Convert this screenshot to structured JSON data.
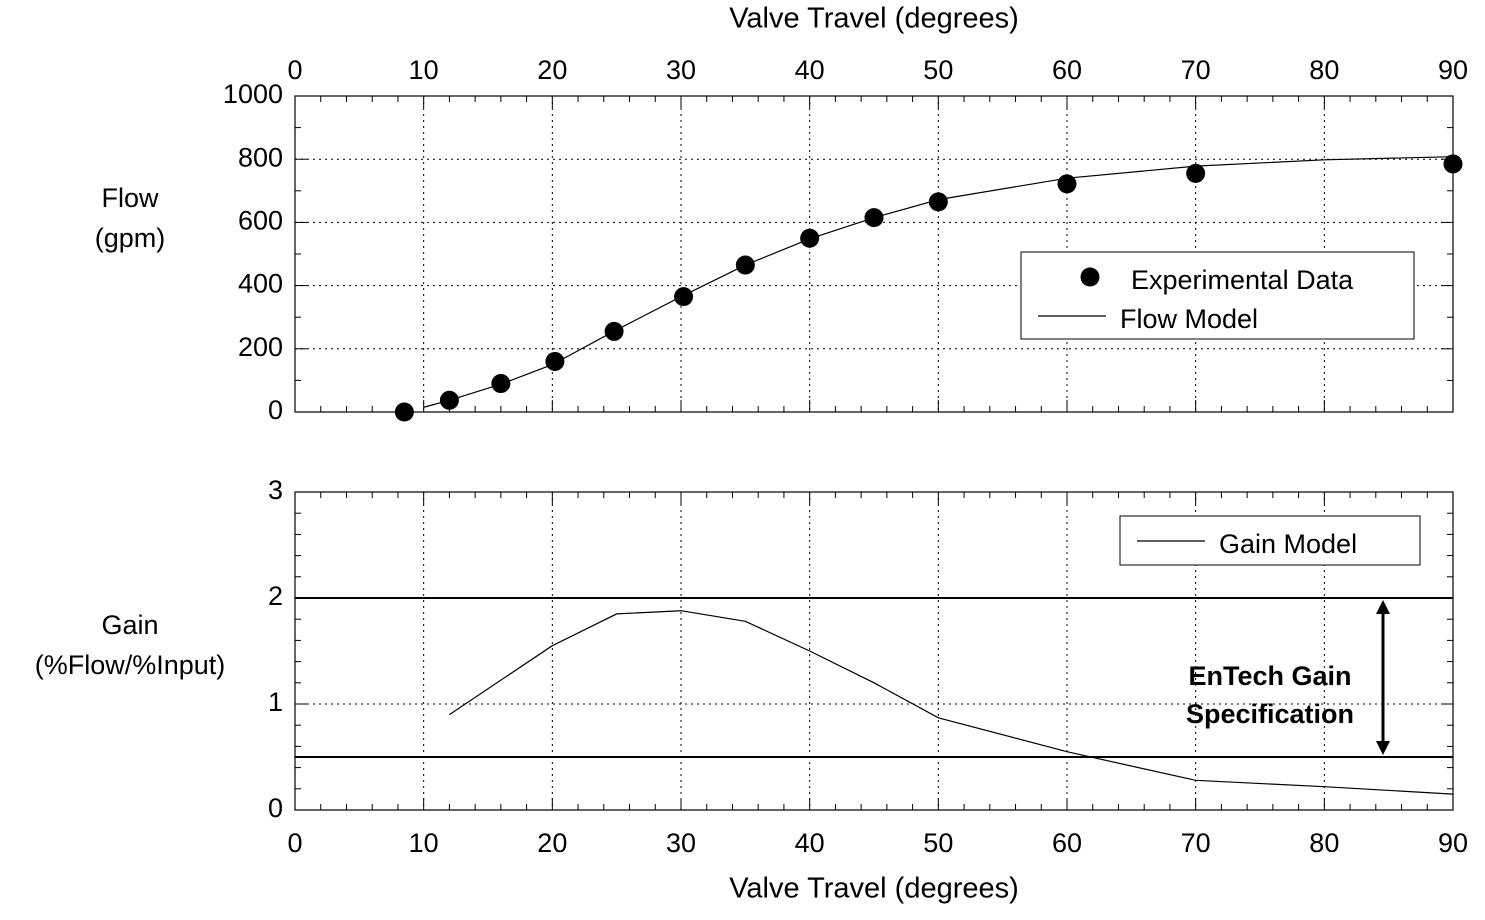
{
  "chart_data": [
    {
      "type": "line",
      "x_label": "Valve Travel (degrees)",
      "y_label": [
        "Flow",
        "(gpm)"
      ],
      "xlim": [
        0,
        90
      ],
      "xticks": [
        0,
        10,
        20,
        30,
        40,
        50,
        60,
        70,
        80,
        90
      ],
      "ylim": [
        0,
        1000
      ],
      "yticks": [
        0,
        200,
        400,
        600,
        800,
        1000
      ],
      "grid": true,
      "legend": true,
      "series": [
        {
          "name": "Experimental Data",
          "mode": "markers",
          "color": "#000000",
          "x": [
            8.5,
            12,
            16,
            20.2,
            24.8,
            30.2,
            35,
            40,
            45,
            50,
            60,
            70,
            90
          ],
          "values": [
            0,
            37,
            90,
            160,
            255,
            365,
            465,
            550,
            615,
            665,
            722,
            755,
            785
          ]
        },
        {
          "name": "Flow Model",
          "mode": "line",
          "color": "#000000",
          "x": [
            10,
            12,
            16,
            20,
            25,
            30,
            35,
            40,
            45,
            50,
            60,
            70,
            80,
            90
          ],
          "values": [
            15,
            37,
            88,
            150,
            260,
            365,
            465,
            548,
            615,
            672,
            740,
            778,
            798,
            808
          ]
        }
      ]
    },
    {
      "type": "line",
      "x_label": "Valve Travel (degrees)",
      "y_label": [
        "Gain",
        "(%Flow/%Input)"
      ],
      "xlim": [
        0,
        90
      ],
      "xticks": [
        0,
        10,
        20,
        30,
        40,
        50,
        60,
        70,
        80,
        90
      ],
      "ylim": [
        0,
        3
      ],
      "yticks": [
        0,
        1,
        2,
        3
      ],
      "grid": true,
      "legend": true,
      "series": [
        {
          "name": "Gain Model",
          "mode": "line",
          "color": "#000000",
          "x": [
            12,
            20,
            25,
            30,
            35,
            40,
            45,
            50,
            60,
            70,
            80,
            90
          ],
          "values": [
            0.9,
            1.55,
            1.85,
            1.88,
            1.78,
            1.5,
            1.2,
            0.87,
            0.55,
            0.28,
            0.22,
            0.15
          ]
        }
      ],
      "reference_lines": [
        {
          "value": 2
        },
        {
          "value": 0.5
        }
      ],
      "annotation": [
        "EnTech Gain",
        "Specification"
      ]
    }
  ]
}
